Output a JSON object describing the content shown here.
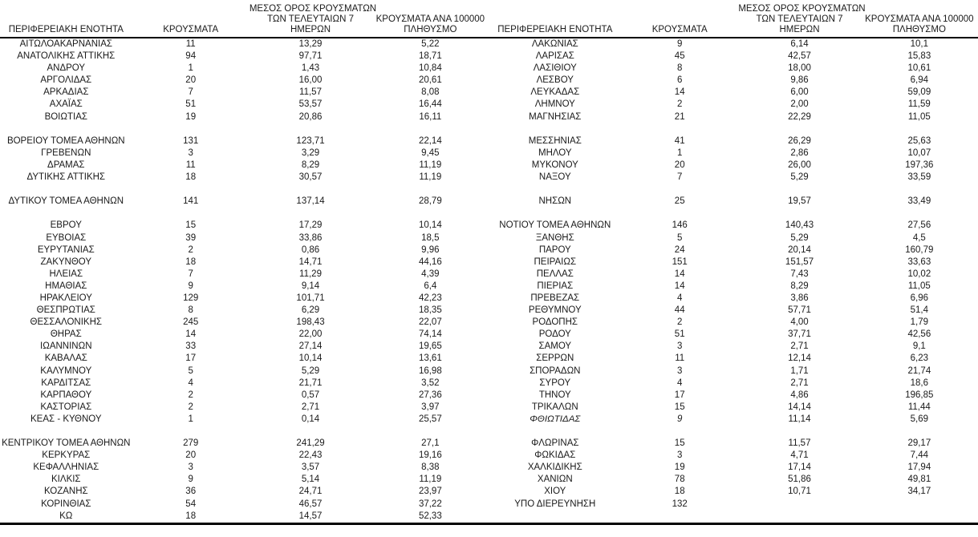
{
  "colors": {
    "background": "#ffffff",
    "text": "#1a1a1a",
    "rule": "#000000"
  },
  "table": {
    "headers": {
      "region": "ΠΕΡΙΦΕΡΕΙΑΚΗ ΕΝΟΤΗΤΑ",
      "cases": "ΚΡΟΥΣΜΑΤΑ",
      "avg7_lines": [
        "ΜΕΣΟΣ ΟΡΟΣ ΚΡΟΥΣΜΑΤΩΝ",
        "ΤΩΝ ΤΕΛΕΥΤΑΙΩΝ 7",
        "ΗΜΕΡΩΝ"
      ],
      "per100k_lines": [
        "ΚΡΟΥΣΜΑΤΑ ΑΝΑ 100000",
        "ΠΛΗΘΥΣΜΟ"
      ]
    },
    "left_rows": [
      {
        "region": "ΑΙΤΩΛΟΑΚΑΡΝΑΝΙΑΣ",
        "cases": "11",
        "avg7": "13,29",
        "per100k": "5,22"
      },
      {
        "region": "ΑΝΑΤΟΛΙΚΗΣ ΑΤΤΙΚΗΣ",
        "cases": "94",
        "avg7": "97,71",
        "per100k": "18,71"
      },
      {
        "region": "ΑΝΔΡΟΥ",
        "cases": "1",
        "avg7": "1,43",
        "per100k": "10,84"
      },
      {
        "region": "ΑΡΓΟΛΙΔΑΣ",
        "cases": "20",
        "avg7": "16,00",
        "per100k": "20,61"
      },
      {
        "region": "ΑΡΚΑΔΙΑΣ",
        "cases": "7",
        "avg7": "11,57",
        "per100k": "8,08"
      },
      {
        "region": "ΑΧΑΪΑΣ",
        "cases": "51",
        "avg7": "53,57",
        "per100k": "16,44"
      },
      {
        "region": "ΒΟΙΩΤΙΑΣ",
        "cases": "19",
        "avg7": "20,86",
        "per100k": "16,11"
      },
      {
        "blank": true
      },
      {
        "region": "ΒΟΡΕΙΟΥ ΤΟΜΕΑ ΑΘΗΝΩΝ",
        "cases": "131",
        "avg7": "123,71",
        "per100k": "22,14"
      },
      {
        "region": "ΓΡΕΒΕΝΩΝ",
        "cases": "3",
        "avg7": "3,29",
        "per100k": "9,45"
      },
      {
        "region": "ΔΡΑΜΑΣ",
        "cases": "11",
        "avg7": "8,29",
        "per100k": "11,19"
      },
      {
        "region": "ΔΥΤΙΚΗΣ ΑΤΤΙΚΗΣ",
        "cases": "18",
        "avg7": "30,57",
        "per100k": "11,19"
      },
      {
        "blank": true
      },
      {
        "region": "ΔΥΤΙΚΟΥ ΤΟΜΕΑ ΑΘΗΝΩΝ",
        "cases": "141",
        "avg7": "137,14",
        "per100k": "28,79"
      },
      {
        "blank": true
      },
      {
        "region": "ΕΒΡΟΥ",
        "cases": "15",
        "avg7": "17,29",
        "per100k": "10,14"
      },
      {
        "region": "ΕΥΒΟΙΑΣ",
        "cases": "39",
        "avg7": "33,86",
        "per100k": "18,5"
      },
      {
        "region": "ΕΥΡΥΤΑΝΙΑΣ",
        "cases": "2",
        "avg7": "0,86",
        "per100k": "9,96"
      },
      {
        "region": "ΖΑΚΥΝΘΟΥ",
        "cases": "18",
        "avg7": "14,71",
        "per100k": "44,16"
      },
      {
        "region": "ΗΛΕΙΑΣ",
        "cases": "7",
        "avg7": "11,29",
        "per100k": "4,39"
      },
      {
        "region": "ΗΜΑΘΙΑΣ",
        "cases": "9",
        "avg7": "9,14",
        "per100k": "6,4"
      },
      {
        "region": "ΗΡΑΚΛΕΙΟΥ",
        "cases": "129",
        "avg7": "101,71",
        "per100k": "42,23"
      },
      {
        "region": "ΘΕΣΠΡΩΤΙΑΣ",
        "cases": "8",
        "avg7": "6,29",
        "per100k": "18,35"
      },
      {
        "region": "ΘΕΣΣΑΛΟΝΙΚΗΣ",
        "cases": "245",
        "avg7": "198,43",
        "per100k": "22,07"
      },
      {
        "region": "ΘΗΡΑΣ",
        "cases": "14",
        "avg7": "22,00",
        "per100k": "74,14"
      },
      {
        "region": "ΙΩΑΝΝΙΝΩΝ",
        "cases": "33",
        "avg7": "27,14",
        "per100k": "19,65"
      },
      {
        "region": "ΚΑΒΑΛΑΣ",
        "cases": "17",
        "avg7": "10,14",
        "per100k": "13,61"
      },
      {
        "region": "ΚΑΛΥΜΝΟΥ",
        "cases": "5",
        "avg7": "5,29",
        "per100k": "16,98"
      },
      {
        "region": "ΚΑΡΔΙΤΣΑΣ",
        "cases": "4",
        "avg7": "21,71",
        "per100k": "3,52"
      },
      {
        "region": "ΚΑΡΠΑΘΟΥ",
        "cases": "2",
        "avg7": "0,57",
        "per100k": "27,36"
      },
      {
        "region": "ΚΑΣΤΟΡΙΑΣ",
        "cases": "2",
        "avg7": "2,71",
        "per100k": "3,97"
      },
      {
        "region": "ΚΕΑΣ - ΚΥΘΝΟΥ",
        "cases": "1",
        "avg7": "0,14",
        "per100k": "25,57"
      },
      {
        "blank": true
      },
      {
        "region": "ΚΕΝΤΡΙΚΟΥ ΤΟΜΕΑ ΑΘΗΝΩΝ",
        "cases": "279",
        "avg7": "241,29",
        "per100k": "27,1"
      },
      {
        "region": "ΚΕΡΚΥΡΑΣ",
        "cases": "20",
        "avg7": "22,43",
        "per100k": "19,16"
      },
      {
        "region": "ΚΕΦΑΛΛΗΝΙΑΣ",
        "cases": "3",
        "avg7": "3,57",
        "per100k": "8,38"
      },
      {
        "region": "ΚΙΛΚΙΣ",
        "cases": "9",
        "avg7": "5,14",
        "per100k": "11,19"
      },
      {
        "region": "ΚΟΖΑΝΗΣ",
        "cases": "36",
        "avg7": "24,71",
        "per100k": "23,97"
      },
      {
        "region": "ΚΟΡΙΝΘΙΑΣ",
        "cases": "54",
        "avg7": "46,57",
        "per100k": "37,22"
      },
      {
        "region": "ΚΩ",
        "cases": "18",
        "avg7": "14,57",
        "per100k": "52,33"
      }
    ],
    "right_rows": [
      {
        "region": "ΛΑΚΩΝΙΑΣ",
        "cases": "9",
        "avg7": "6,14",
        "per100k": "10,1"
      },
      {
        "region": "ΛΑΡΙΣΑΣ",
        "cases": "45",
        "avg7": "42,57",
        "per100k": "15,83"
      },
      {
        "region": "ΛΑΣΙΘΙΟΥ",
        "cases": "8",
        "avg7": "18,00",
        "per100k": "10,61"
      },
      {
        "region": "ΛΕΣΒΟΥ",
        "cases": "6",
        "avg7": "9,86",
        "per100k": "6,94"
      },
      {
        "region": "ΛΕΥΚΑΔΑΣ",
        "cases": "14",
        "avg7": "6,00",
        "per100k": "59,09"
      },
      {
        "region": "ΛΗΜΝΟΥ",
        "cases": "2",
        "avg7": "2,00",
        "per100k": "11,59"
      },
      {
        "region": "ΜΑΓΝΗΣΙΑΣ",
        "cases": "21",
        "avg7": "22,29",
        "per100k": "11,05"
      },
      {
        "blank": true
      },
      {
        "region": "ΜΕΣΣΗΝΙΑΣ",
        "cases": "41",
        "avg7": "26,29",
        "per100k": "25,63"
      },
      {
        "region": "ΜΗΛΟΥ",
        "cases": "1",
        "avg7": "2,86",
        "per100k": "10,07"
      },
      {
        "region": "ΜΥΚΟΝΟΥ",
        "cases": "20",
        "avg7": "26,00",
        "per100k": "197,36"
      },
      {
        "region": "ΝΑΞΟΥ",
        "cases": "7",
        "avg7": "5,29",
        "per100k": "33,59"
      },
      {
        "blank": true
      },
      {
        "region": "ΝΗΣΩΝ",
        "cases": "25",
        "avg7": "19,57",
        "per100k": "33,49"
      },
      {
        "blank": true
      },
      {
        "region": "ΝΟΤΙΟΥ ΤΟΜΕΑ ΑΘΗΝΩΝ",
        "cases": "146",
        "avg7": "140,43",
        "per100k": "27,56"
      },
      {
        "region": "ΞΑΝΘΗΣ",
        "cases": "5",
        "avg7": "5,29",
        "per100k": "4,5"
      },
      {
        "region": "ΠΑΡΟΥ",
        "cases": "24",
        "avg7": "20,14",
        "per100k": "160,79"
      },
      {
        "region": "ΠΕΙΡΑΙΩΣ",
        "cases": "151",
        "avg7": "151,57",
        "per100k": "33,63"
      },
      {
        "region": "ΠΕΛΛΑΣ",
        "cases": "14",
        "avg7": "7,43",
        "per100k": "10,02"
      },
      {
        "region": "ΠΙΕΡΙΑΣ",
        "cases": "14",
        "avg7": "8,29",
        "per100k": "11,05"
      },
      {
        "region": "ΠΡΕΒΕΖΑΣ",
        "cases": "4",
        "avg7": "3,86",
        "per100k": "6,96"
      },
      {
        "region": "ΡΕΘΥΜΝΟΥ",
        "cases": "44",
        "avg7": "57,71",
        "per100k": "51,4"
      },
      {
        "region": "ΡΟΔΟΠΗΣ",
        "cases": "2",
        "avg7": "4,00",
        "per100k": "1,79"
      },
      {
        "region": "ΡΟΔΟΥ",
        "cases": "51",
        "avg7": "37,71",
        "per100k": "42,56"
      },
      {
        "region": "ΣΑΜΟΥ",
        "cases": "3",
        "avg7": "2,71",
        "per100k": "9,1"
      },
      {
        "region": "ΣΕΡΡΩΝ",
        "cases": "11",
        "avg7": "12,14",
        "per100k": "6,23"
      },
      {
        "region": "ΣΠΟΡΑΔΩΝ",
        "cases": "3",
        "avg7": "1,71",
        "per100k": "21,74"
      },
      {
        "region": "ΣΥΡΟΥ",
        "cases": "4",
        "avg7": "2,71",
        "per100k": "18,6"
      },
      {
        "region": "ΤΗΝΟΥ",
        "cases": "17",
        "avg7": "4,86",
        "per100k": "196,85"
      },
      {
        "region": "ΤΡΙΚΑΛΩΝ",
        "cases": "15",
        "avg7": "14,14",
        "per100k": "11,44"
      },
      {
        "region": "ΦΘΙΩΤΙΔΑΣ",
        "cases": "9",
        "avg7": "11,14",
        "per100k": "5,69",
        "italic": true
      },
      {
        "blank": true
      },
      {
        "region": "ΦΛΩΡΙΝΑΣ",
        "cases": "15",
        "avg7": "11,57",
        "per100k": "29,17"
      },
      {
        "region": "ΦΩΚΙΔΑΣ",
        "cases": "3",
        "avg7": "4,71",
        "per100k": "7,44"
      },
      {
        "region": "ΧΑΛΚΙΔΙΚΗΣ",
        "cases": "19",
        "avg7": "17,14",
        "per100k": "17,94"
      },
      {
        "region": "ΧΑΝΙΩΝ",
        "cases": "78",
        "avg7": "51,86",
        "per100k": "49,81"
      },
      {
        "region": "ΧΙΟΥ",
        "cases": "18",
        "avg7": "10,71",
        "per100k": "34,17"
      },
      {
        "region": "ΥΠΟ ΔΙΕΡΕΥΝΗΣΗ",
        "cases": "132",
        "avg7": "",
        "per100k": ""
      },
      {
        "blank": true
      }
    ]
  }
}
